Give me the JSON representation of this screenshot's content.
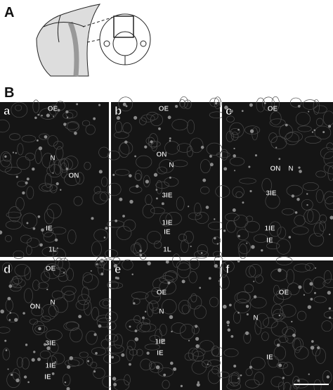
{
  "figure": {
    "part_a": "A",
    "part_b": "B"
  },
  "panels": [
    {
      "letter": "a",
      "labels": [
        "OE",
        "N",
        "ON",
        "IE",
        "1L"
      ]
    },
    {
      "letter": "b",
      "labels": [
        "OE",
        "ON",
        "N",
        "3IE",
        "1IE",
        "IE",
        "1L"
      ]
    },
    {
      "letter": "c",
      "labels": [
        "OE",
        "ON",
        "N",
        "3IE",
        "1IE",
        "IE"
      ]
    },
    {
      "letter": "d",
      "labels": [
        "OE",
        "ON",
        "N",
        "3IE",
        "1IE",
        "IE"
      ]
    },
    {
      "letter": "e",
      "labels": [
        "OE",
        "N",
        "1IE",
        "IE"
      ]
    },
    {
      "letter": "f",
      "labels": [
        "OE",
        "N",
        "IE"
      ]
    }
  ]
}
